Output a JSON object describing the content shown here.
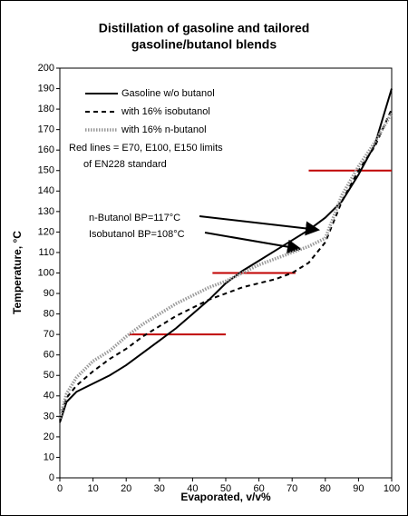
{
  "chart_data": {
    "type": "line",
    "title": [
      "Distillation of gasoline and tailored",
      "gasoline/butanol blends"
    ],
    "x_label": "Evaporated, v/v%",
    "y_label": "Temperature, °C",
    "x": [
      0,
      2,
      5,
      10,
      15,
      20,
      25,
      30,
      35,
      40,
      45,
      50,
      55,
      60,
      65,
      70,
      75,
      80,
      85,
      90,
      95,
      100
    ],
    "series": [
      {
        "name": "Gasoline w/o butanol",
        "color": "#000000",
        "style": "solid",
        "values": [
          27,
          37,
          42,
          46,
          50,
          55,
          61,
          67,
          73,
          80,
          87,
          95,
          101,
          106,
          111,
          116,
          121,
          127,
          135,
          148,
          163,
          190
        ]
      },
      {
        "name": "with 16% isobutanol",
        "color": "#000000",
        "style": "dashed",
        "values": [
          28,
          39,
          45,
          52,
          58,
          63,
          69,
          74,
          79,
          83,
          87,
          90,
          93,
          95,
          97,
          100,
          105,
          115,
          135,
          150,
          162,
          180
        ]
      },
      {
        "name": "with 16% n-butanol",
        "color": "#999999",
        "style": "dotted",
        "values": [
          29,
          41,
          49,
          57,
          62,
          69,
          75,
          80,
          85,
          89,
          93,
          96,
          100,
          104,
          107,
          110,
          113,
          117,
          138,
          152,
          164,
          178
        ]
      }
    ],
    "reference_lines": {
      "color": "#c00000",
      "y": [
        70,
        100,
        150
      ],
      "x_start": [
        21,
        46,
        75
      ],
      "x_end": [
        50,
        71,
        100
      ]
    },
    "annotations": [
      "Red lines = E70, E100, E150 limits",
      "of EN228 standard",
      "n-Butanol BP=117°C",
      "Isobutanol BP=108°C"
    ],
    "xlim": [
      0,
      100
    ],
    "xticks": [
      0,
      10,
      20,
      30,
      40,
      50,
      60,
      70,
      80,
      90,
      100
    ],
    "ylim": [
      0,
      200
    ],
    "yticks": [
      0,
      10,
      20,
      30,
      40,
      50,
      60,
      70,
      80,
      90,
      100,
      110,
      120,
      130,
      140,
      150,
      160,
      170,
      180,
      190,
      200
    ],
    "grid": false
  }
}
